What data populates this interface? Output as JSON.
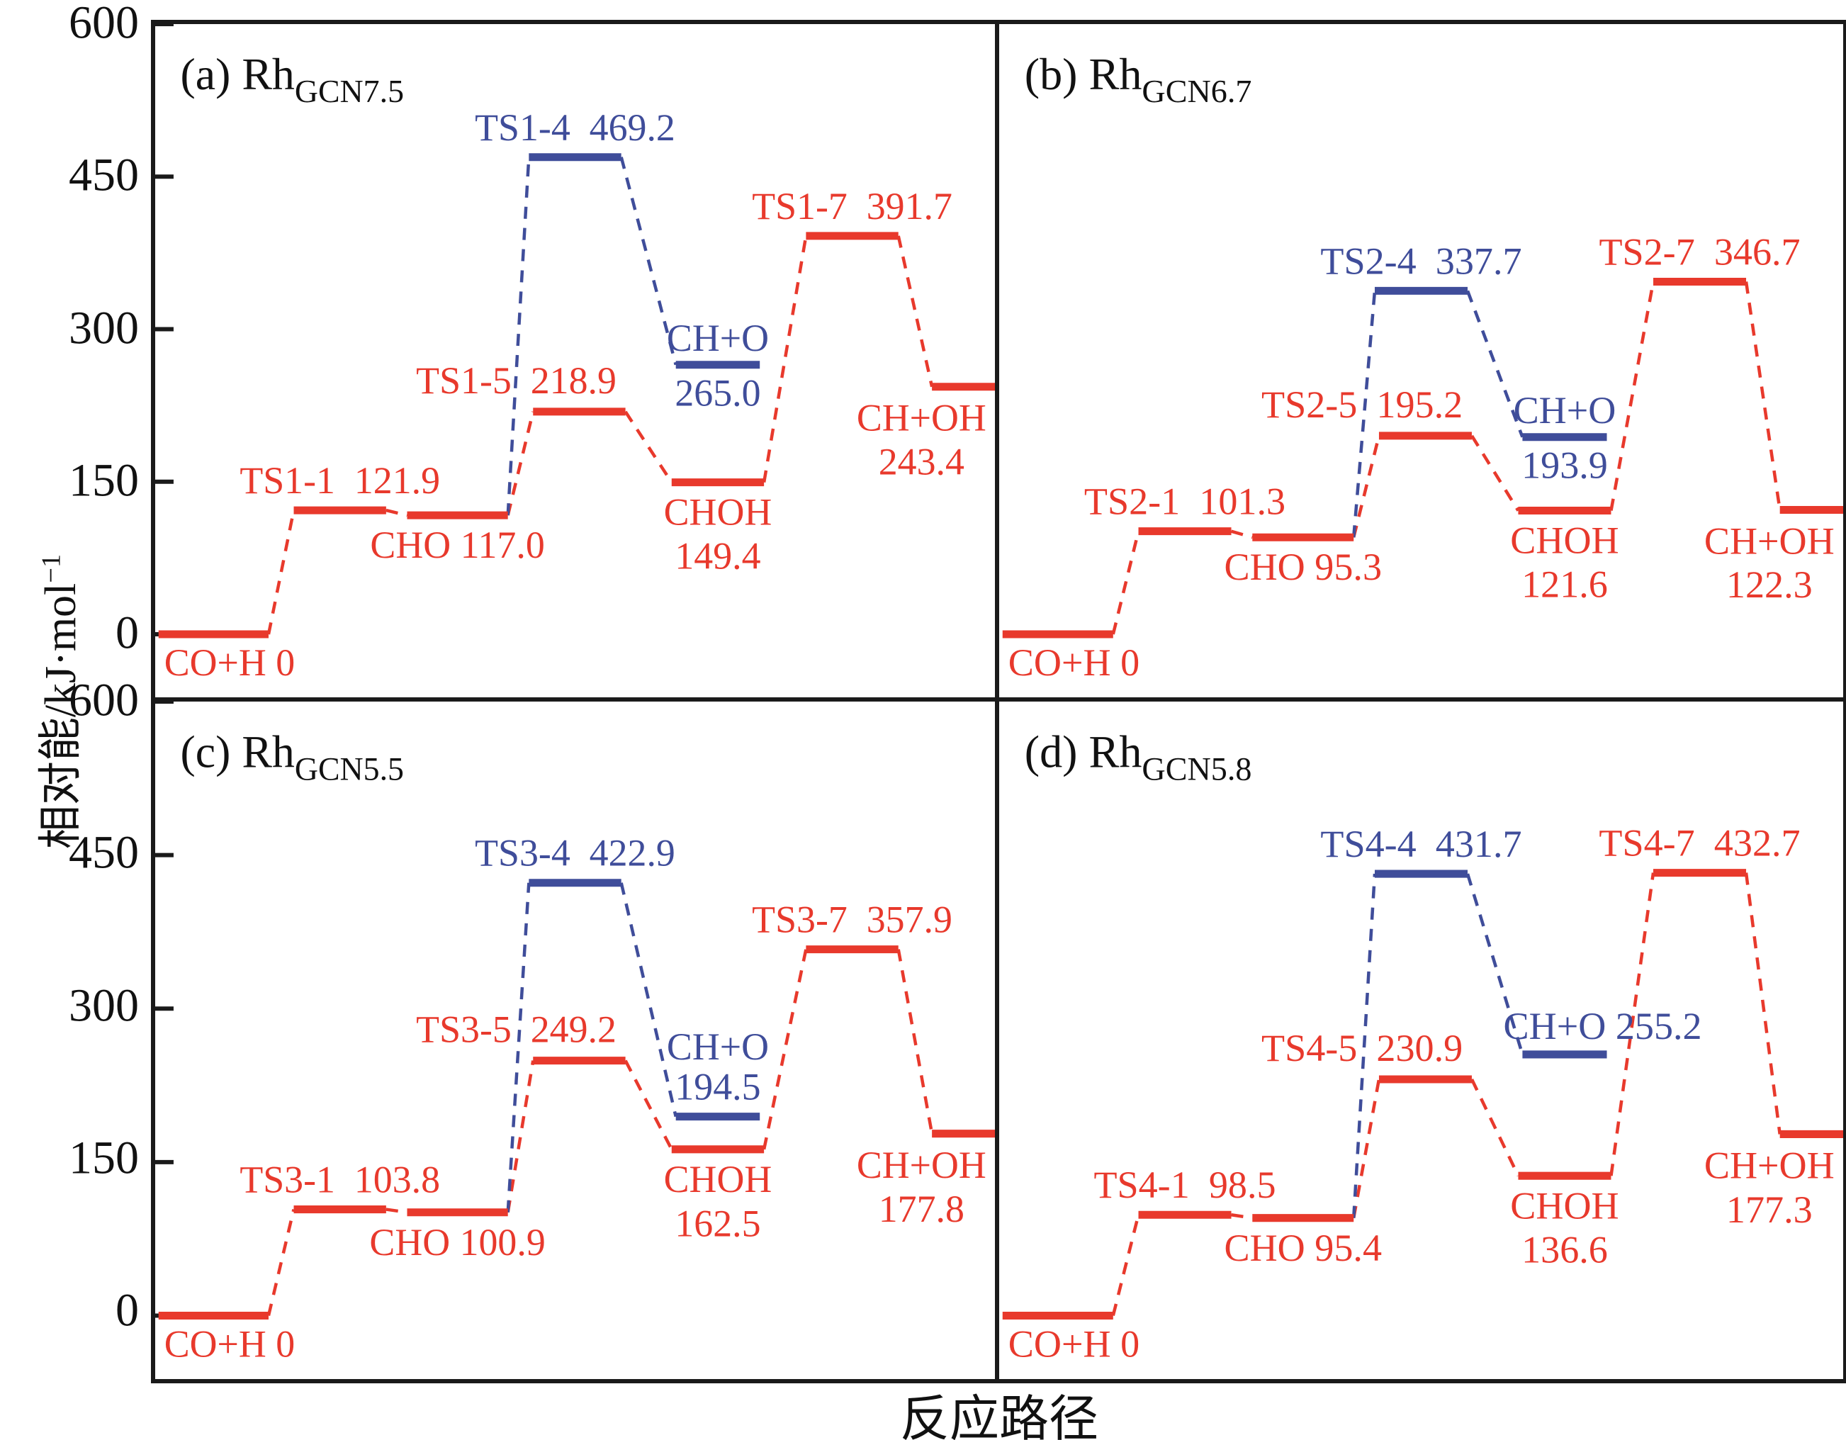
{
  "figure": {
    "y_axis_title_main": "相对能/kJ·mol",
    "y_axis_title_sup": "−1",
    "x_axis_title": "反应路径",
    "y_ticks": [
      600,
      450,
      300,
      150,
      0
    ],
    "ylim": [
      -62,
      600
    ],
    "grid": false,
    "legend": "none",
    "colors": {
      "red": "#e8392c",
      "blue": "#3f4d9a",
      "axis": "#1a1a1a"
    },
    "connectivity": {
      "red": [
        "co_h",
        "ts1",
        "cho",
        "ts5",
        "choh",
        "ts7",
        "ch_oh"
      ],
      "blue": [
        "cho",
        "ts4",
        "ch_o"
      ]
    }
  },
  "chart_data": {
    "type": "energy_level_diagram",
    "x_meaning": "reaction pathway (reaction coordinate)",
    "y_units": "kJ/mol",
    "panels": [
      {
        "id": "a",
        "title_prefix": "(a)",
        "title_base": "Rh",
        "title_sub": "GCN7.5",
        "ticks": true,
        "levels": {
          "co_h": {
            "label": "CO+H",
            "value": "0",
            "energy": 0,
            "color": "red"
          },
          "ts1": {
            "label": "TS1-1",
            "value": "121.9",
            "energy": 121.9,
            "color": "red"
          },
          "cho": {
            "label": "CHO",
            "value": "117.0",
            "energy": 117.0,
            "color": "red"
          },
          "ts4": {
            "label": "TS1-4",
            "value": "469.2",
            "energy": 469.2,
            "color": "blue"
          },
          "ts5": {
            "label": "TS1-5",
            "value": "218.9",
            "energy": 218.9,
            "color": "red"
          },
          "ch_o": {
            "label": "CH+O",
            "value": "265.0",
            "energy": 265.0,
            "color": "blue",
            "value_pos": "below"
          },
          "choh": {
            "label": "CHOH",
            "value": "149.4",
            "energy": 149.4,
            "color": "red"
          },
          "ts7": {
            "label": "TS1-7",
            "value": "391.7",
            "energy": 391.7,
            "color": "red"
          },
          "ch_oh": {
            "label": "CH+OH",
            "value": "243.4",
            "energy": 243.4,
            "color": "red"
          }
        }
      },
      {
        "id": "b",
        "title_prefix": "(b)",
        "title_base": "Rh",
        "title_sub": "GCN6.7",
        "ticks": false,
        "levels": {
          "co_h": {
            "label": "CO+H",
            "value": "0",
            "energy": 0,
            "color": "red"
          },
          "ts1": {
            "label": "TS2-1",
            "value": "101.3",
            "energy": 101.3,
            "color": "red"
          },
          "cho": {
            "label": "CHO",
            "value": "95.3",
            "energy": 95.3,
            "color": "red"
          },
          "ts4": {
            "label": "TS2-4",
            "value": "337.7",
            "energy": 337.7,
            "color": "blue"
          },
          "ts5": {
            "label": "TS2-5",
            "value": "195.2",
            "energy": 195.2,
            "color": "red"
          },
          "ch_o": {
            "label": "CH+O",
            "value": "193.9",
            "energy": 193.9,
            "color": "blue",
            "value_pos": "below"
          },
          "choh": {
            "label": "CHOH",
            "value": "121.6",
            "energy": 121.6,
            "color": "red"
          },
          "ts7": {
            "label": "TS2-7",
            "value": "346.7",
            "energy": 346.7,
            "color": "red"
          },
          "ch_oh": {
            "label": "CH+OH",
            "value": "122.3",
            "energy": 122.3,
            "color": "red"
          }
        }
      },
      {
        "id": "c",
        "title_prefix": "(c)",
        "title_base": "Rh",
        "title_sub": "GCN5.5",
        "ticks": true,
        "levels": {
          "co_h": {
            "label": "CO+H",
            "value": "0",
            "energy": 0,
            "color": "red"
          },
          "ts1": {
            "label": "TS3-1",
            "value": "103.8",
            "energy": 103.8,
            "color": "red"
          },
          "cho": {
            "label": "CHO",
            "value": "100.9",
            "energy": 100.9,
            "color": "red"
          },
          "ts4": {
            "label": "TS3-4",
            "value": "422.9",
            "energy": 422.9,
            "color": "blue"
          },
          "ts5": {
            "label": "TS3-5",
            "value": "249.2",
            "energy": 249.2,
            "color": "red"
          },
          "ch_o": {
            "label": "CH+O",
            "value": "194.5",
            "energy": 194.5,
            "color": "blue",
            "value_pos": "above"
          },
          "choh": {
            "label": "CHOH",
            "value": "162.5",
            "energy": 162.5,
            "color": "red"
          },
          "ts7": {
            "label": "TS3-7",
            "value": "357.9",
            "energy": 357.9,
            "color": "red"
          },
          "ch_oh": {
            "label": "CH+OH",
            "value": "177.8",
            "energy": 177.8,
            "color": "red"
          }
        }
      },
      {
        "id": "d",
        "title_prefix": "(d)",
        "title_base": "Rh",
        "title_sub": "GCN5.8",
        "ticks": false,
        "levels": {
          "co_h": {
            "label": "CO+H",
            "value": "0",
            "energy": 0,
            "color": "red"
          },
          "ts1": {
            "label": "TS4-1",
            "value": "98.5",
            "energy": 98.5,
            "color": "red"
          },
          "cho": {
            "label": "CHO",
            "value": "95.4",
            "energy": 95.4,
            "color": "red"
          },
          "ts4": {
            "label": "TS4-4",
            "value": "431.7",
            "energy": 431.7,
            "color": "blue"
          },
          "ts5": {
            "label": "TS4-5",
            "value": "230.9",
            "energy": 230.9,
            "color": "red"
          },
          "ch_o": {
            "label": "CH+O",
            "value": "255.2",
            "energy": 255.2,
            "color": "blue",
            "value_pos": "inline"
          },
          "choh": {
            "label": "CHOH",
            "value": "136.6",
            "energy": 136.6,
            "color": "red"
          },
          "ts7": {
            "label": "TS4-7",
            "value": "432.7",
            "energy": 432.7,
            "color": "red"
          },
          "ch_oh": {
            "label": "CH+OH",
            "value": "177.3",
            "energy": 177.3,
            "color": "red"
          }
        }
      }
    ]
  }
}
